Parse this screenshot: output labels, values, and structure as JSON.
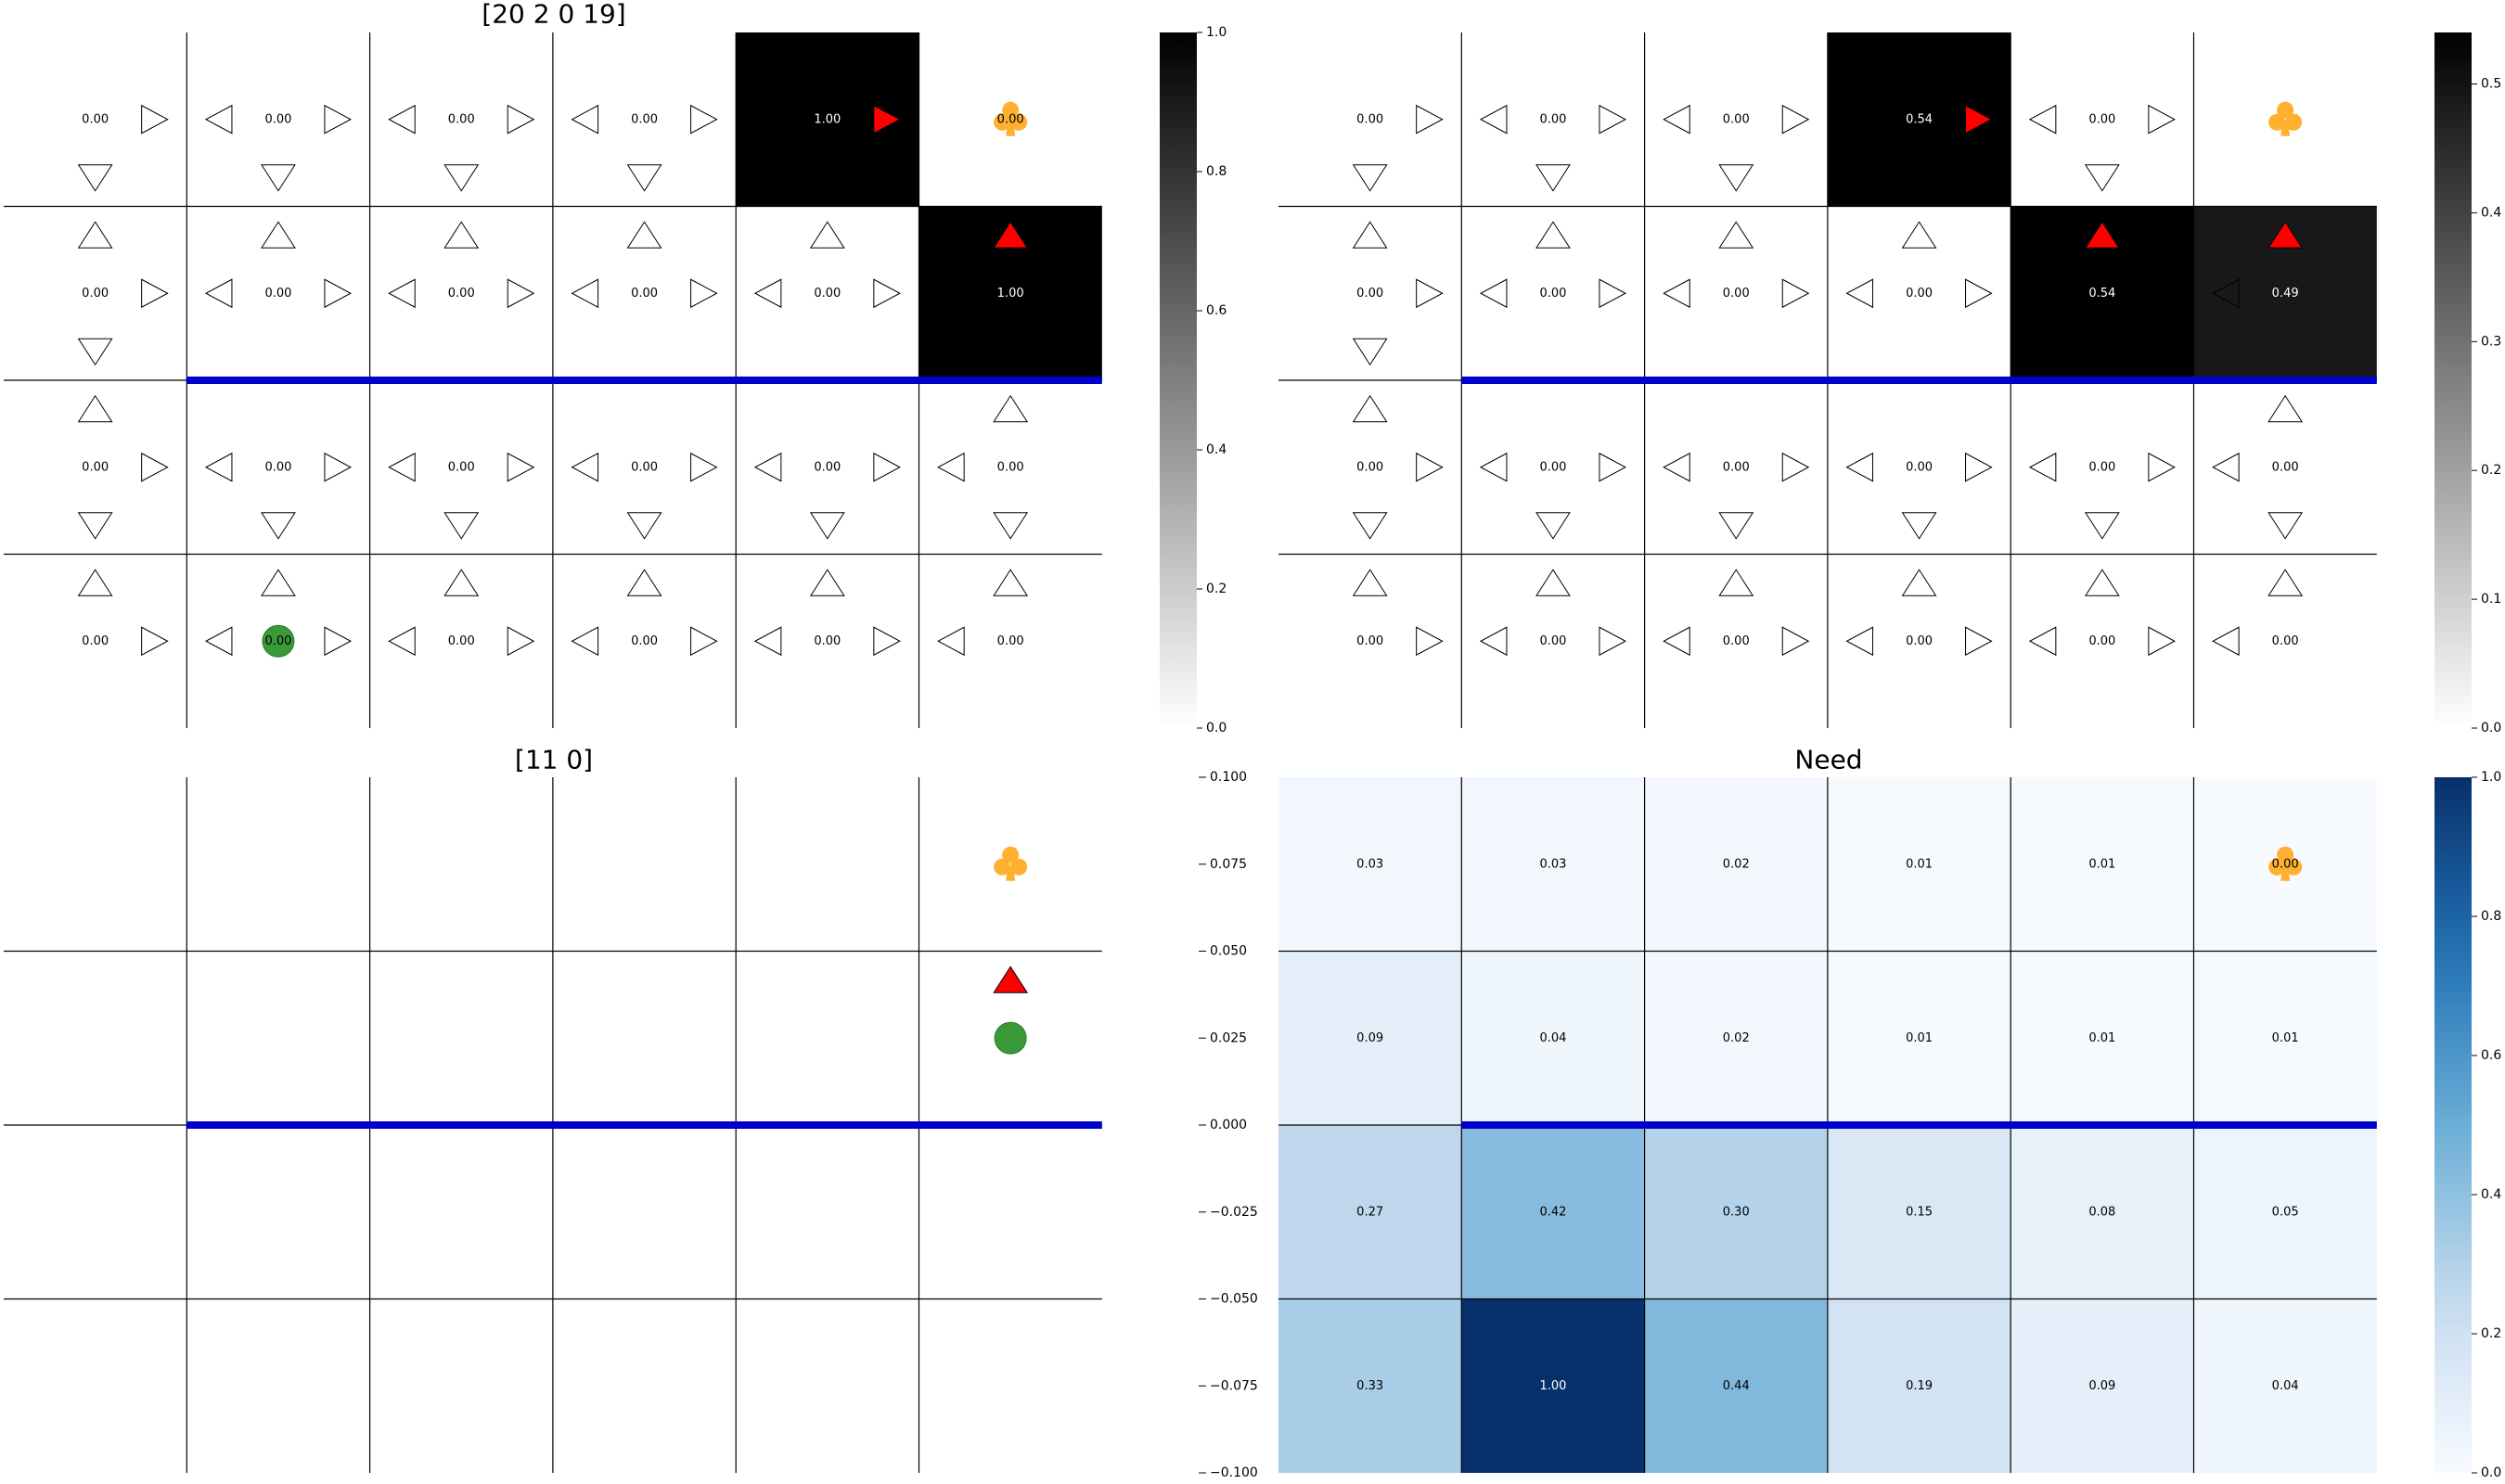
{
  "chart_data": [
    {
      "type": "heatmap",
      "title": "[20 2 0 19]",
      "rows": 4,
      "cols": 6,
      "values": [
        [
          "0.00",
          "0.00",
          "0.00",
          "0.00",
          "1.00",
          "0.00"
        ],
        [
          "0.00",
          "0.00",
          "0.00",
          "0.00",
          "0.00",
          "1.00"
        ],
        [
          "0.00",
          "0.00",
          "0.00",
          "0.00",
          "0.00",
          "0.00"
        ],
        [
          "0.00",
          "0.00",
          "0.00",
          "0.00",
          "0.00",
          "0.00"
        ]
      ],
      "arrows": [
        [
          [
            "right",
            "down"
          ],
          [
            "left",
            "right",
            "down"
          ],
          [
            "left",
            "right",
            "down"
          ],
          [
            "left",
            "right",
            "down"
          ],
          [
            "right"
          ],
          []
        ],
        [
          [
            "up",
            "right",
            "down"
          ],
          [
            "up",
            "left",
            "right"
          ],
          [
            "up",
            "left",
            "right"
          ],
          [
            "up",
            "left",
            "right"
          ],
          [
            "up",
            "left",
            "right"
          ],
          [
            "up"
          ]
        ],
        [
          [
            "up",
            "right",
            "down"
          ],
          [
            "left",
            "right",
            "down"
          ],
          [
            "left",
            "right",
            "down"
          ],
          [
            "left",
            "right",
            "down"
          ],
          [
            "left",
            "right",
            "down"
          ],
          [
            "up",
            "left",
            "down"
          ]
        ],
        [
          [
            "up",
            "right"
          ],
          [
            "up",
            "left",
            "right"
          ],
          [
            "up",
            "left",
            "right"
          ],
          [
            "up",
            "left",
            "right"
          ],
          [
            "up",
            "left",
            "right"
          ],
          [
            "up",
            "left"
          ]
        ]
      ],
      "highlight_arrows": [
        [
          0,
          4,
          "right"
        ],
        [
          1,
          5,
          "up"
        ]
      ],
      "agent": [
        3,
        1
      ],
      "goal": [
        0,
        5
      ],
      "wall": {
        "row_boundary": 2,
        "from_col": 1,
        "to_col": 6
      },
      "colormap": "greys",
      "colorbar": {
        "min": 0.0,
        "max": 1.0,
        "ticks": [
          "0.0",
          "0.2",
          "0.4",
          "0.6",
          "0.8",
          "1.0"
        ]
      }
    },
    {
      "type": "heatmap",
      "title": "",
      "rows": 4,
      "cols": 6,
      "values": [
        [
          "0.00",
          "0.00",
          "0.00",
          "0.54",
          "0.00",
          ""
        ],
        [
          "0.00",
          "0.00",
          "0.00",
          "0.00",
          "0.54",
          "0.49"
        ],
        [
          "0.00",
          "0.00",
          "0.00",
          "0.00",
          "0.00",
          "0.00"
        ],
        [
          "0.00",
          "0.00",
          "0.00",
          "0.00",
          "0.00",
          "0.00"
        ]
      ],
      "arrows": [
        [
          [
            "right",
            "down"
          ],
          [
            "left",
            "right",
            "down"
          ],
          [
            "left",
            "right",
            "down"
          ],
          [
            "right"
          ],
          [
            "left",
            "right",
            "down"
          ],
          []
        ],
        [
          [
            "up",
            "right",
            "down"
          ],
          [
            "up",
            "left",
            "right"
          ],
          [
            "up",
            "left",
            "right"
          ],
          [
            "up",
            "left",
            "right"
          ],
          [
            "up"
          ],
          [
            "up",
            "left"
          ]
        ],
        [
          [
            "up",
            "right",
            "down"
          ],
          [
            "left",
            "right",
            "down"
          ],
          [
            "left",
            "right",
            "down"
          ],
          [
            "left",
            "right",
            "down"
          ],
          [
            "left",
            "right",
            "down"
          ],
          [
            "up",
            "left",
            "down"
          ]
        ],
        [
          [
            "up",
            "right"
          ],
          [
            "up",
            "left",
            "right"
          ],
          [
            "up",
            "left",
            "right"
          ],
          [
            "up",
            "left",
            "right"
          ],
          [
            "up",
            "left",
            "right"
          ],
          [
            "up",
            "left"
          ]
        ]
      ],
      "highlight_arrows": [
        [
          0,
          3,
          "right"
        ],
        [
          1,
          4,
          "up"
        ],
        [
          1,
          5,
          "up"
        ]
      ],
      "agent": null,
      "goal": [
        0,
        5
      ],
      "wall": {
        "row_boundary": 2,
        "from_col": 1,
        "to_col": 6
      },
      "colormap": "greys",
      "colorbar": {
        "min": 0.0,
        "max": 0.54,
        "ticks": [
          "0.0",
          "0.1",
          "0.2",
          "0.3",
          "0.4",
          "0.5"
        ]
      }
    },
    {
      "type": "heatmap",
      "title": "[11 0]",
      "rows": 4,
      "cols": 6,
      "values": [
        [
          "",
          "",
          "",
          "",
          "",
          ""
        ],
        [
          "",
          "",
          "",
          "",
          "",
          ""
        ],
        [
          "",
          "",
          "",
          "",
          "",
          ""
        ],
        [
          "",
          "",
          "",
          "",
          "",
          ""
        ]
      ],
      "arrows": [],
      "highlight_arrows": [
        [
          1,
          5,
          "up"
        ]
      ],
      "agent": [
        1,
        5
      ],
      "goal": [
        0,
        5
      ],
      "wall": {
        "row_boundary": 2,
        "from_col": 1,
        "to_col": 6
      },
      "colormap": "none",
      "y_axis": {
        "min": -0.1,
        "max": 0.1,
        "ticks": [
          "0.100",
          "0.075",
          "0.050",
          "0.025",
          "0.000",
          "−0.025",
          "−0.050",
          "−0.075",
          "−0.100"
        ]
      }
    },
    {
      "type": "heatmap",
      "title": "Need",
      "rows": 4,
      "cols": 6,
      "values": [
        [
          "0.03",
          "0.03",
          "0.02",
          "0.01",
          "0.01",
          "0.00"
        ],
        [
          "0.09",
          "0.04",
          "0.02",
          "0.01",
          "0.01",
          "0.01"
        ],
        [
          "0.27",
          "0.42",
          "0.30",
          "0.15",
          "0.08",
          "0.05"
        ],
        [
          "0.33",
          "1.00",
          "0.44",
          "0.19",
          "0.09",
          "0.04"
        ]
      ],
      "arrows": [],
      "highlight_arrows": [],
      "agent": null,
      "goal": [
        0,
        5
      ],
      "wall": {
        "row_boundary": 2,
        "from_col": 1,
        "to_col": 6
      },
      "colormap": "blues",
      "colorbar": {
        "min": 0.0,
        "max": 1.0,
        "ticks": [
          "0.0",
          "0.2",
          "0.4",
          "0.6",
          "0.8",
          "1.0"
        ]
      }
    }
  ],
  "style": {
    "wall_color": "#0000cc",
    "highlight_color": "#ff0000",
    "agent_color": "#3a9a3a",
    "goal_color": "#ffb030",
    "grid_line_color": "#000000"
  }
}
